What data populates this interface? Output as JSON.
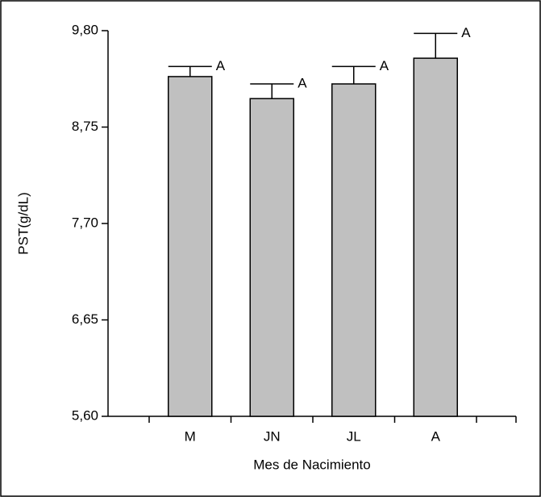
{
  "chart_data": {
    "type": "bar",
    "x_label": "Mes de Nacimiento",
    "y_label": "PST(g/dL)",
    "categories": [
      "M",
      "JN",
      "JL",
      "A"
    ],
    "values": [
      9.3,
      9.06,
      9.22,
      9.5
    ],
    "errors": [
      0.11,
      0.16,
      0.19,
      0.27
    ],
    "letters": [
      "A",
      "A",
      "A",
      "A"
    ],
    "color": "#c0c0c0",
    "ylim": [
      5.6,
      9.8
    ],
    "yticks": [
      {
        "value": 5.6,
        "label": "5,60"
      },
      {
        "value": 6.65,
        "label": "6,65"
      },
      {
        "value": 7.7,
        "label": "7,70"
      },
      {
        "value": 8.75,
        "label": "8,75"
      },
      {
        "value": 9.8,
        "label": "9,80"
      }
    ]
  }
}
